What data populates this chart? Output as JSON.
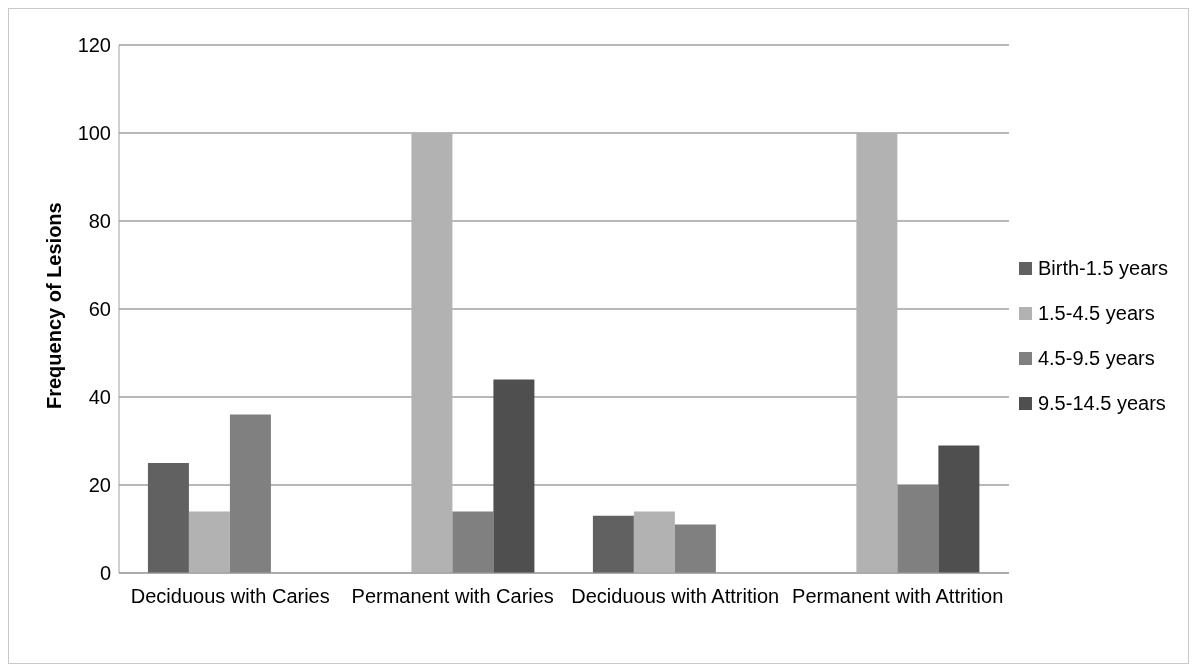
{
  "chart_data": {
    "type": "bar",
    "ylabel": "Frequency of Lesions",
    "categories": [
      "Deciduous with Caries",
      "Permanent with Caries",
      "Deciduous with Attrition",
      "Permanent with Attrition"
    ],
    "series": [
      {
        "name": "Birth-1.5 years",
        "color": "#616161",
        "values": [
          25,
          0,
          13,
          0
        ]
      },
      {
        "name": "1.5-4.5 years",
        "color": "#b2b2b2",
        "values": [
          14,
          100,
          14,
          100
        ]
      },
      {
        "name": "4.5-9.5 years",
        "color": "#808080",
        "values": [
          36,
          14,
          11,
          20
        ]
      },
      {
        "name": "9.5-14.5 years",
        "color": "#4f4f4f",
        "values": [
          0,
          44,
          0,
          29
        ]
      }
    ],
    "ylim": [
      0,
      120
    ],
    "yticks": [
      0,
      20,
      40,
      60,
      80,
      100,
      120
    ],
    "grid": "y",
    "legend": "right"
  }
}
